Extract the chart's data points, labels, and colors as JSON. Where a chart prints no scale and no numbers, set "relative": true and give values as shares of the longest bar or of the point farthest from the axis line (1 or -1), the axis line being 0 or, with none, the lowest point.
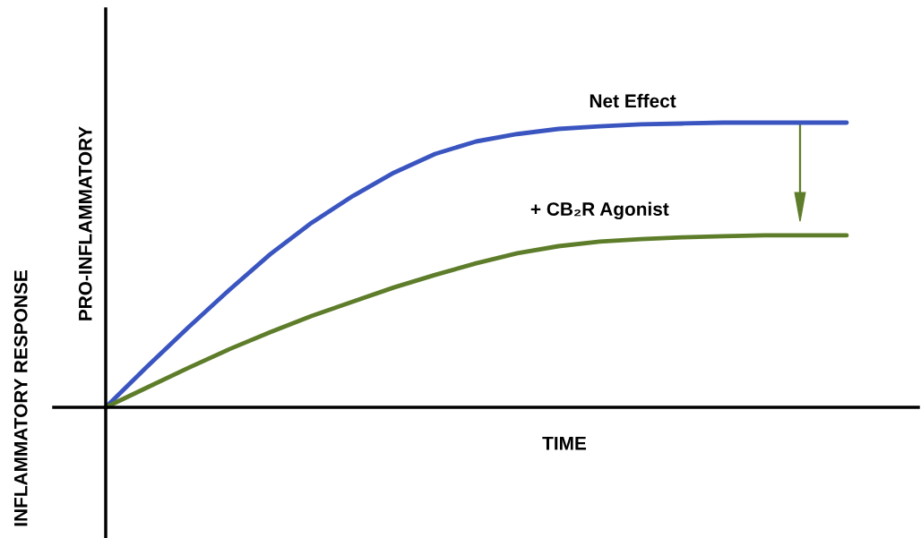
{
  "chart_data": {
    "type": "line",
    "relative": true,
    "xlabel": "TIME",
    "ylabel": "INFLAMMATORY RESPONSE",
    "annotations": [
      "PRO-INFLAMMATORY"
    ],
    "categories": [
      null,
      null,
      null,
      null,
      null,
      null,
      null,
      null,
      null,
      null,
      null,
      null,
      null,
      null,
      null,
      null,
      null,
      null,
      null
    ],
    "series": [
      {
        "name": "Net Effect",
        "color": "#3a55c0",
        "values": [
          0,
          0.142,
          0.28,
          0.412,
          0.538,
          0.648,
          0.742,
          0.824,
          0.89,
          0.934,
          0.96,
          0.978,
          0.987,
          0.994,
          0.997,
          1,
          1,
          1,
          1
        ]
      },
      {
        "name": "+ CB₂R Agonist",
        "color": "#5e7d2a",
        "values": [
          0,
          0.069,
          0.138,
          0.204,
          0.264,
          0.321,
          0.371,
          0.421,
          0.465,
          0.506,
          0.541,
          0.566,
          0.582,
          0.591,
          0.597,
          0.601,
          0.604,
          0.604,
          0.604
        ]
      }
    ],
    "legend": false,
    "marker": "none",
    "line_style": "solid"
  }
}
